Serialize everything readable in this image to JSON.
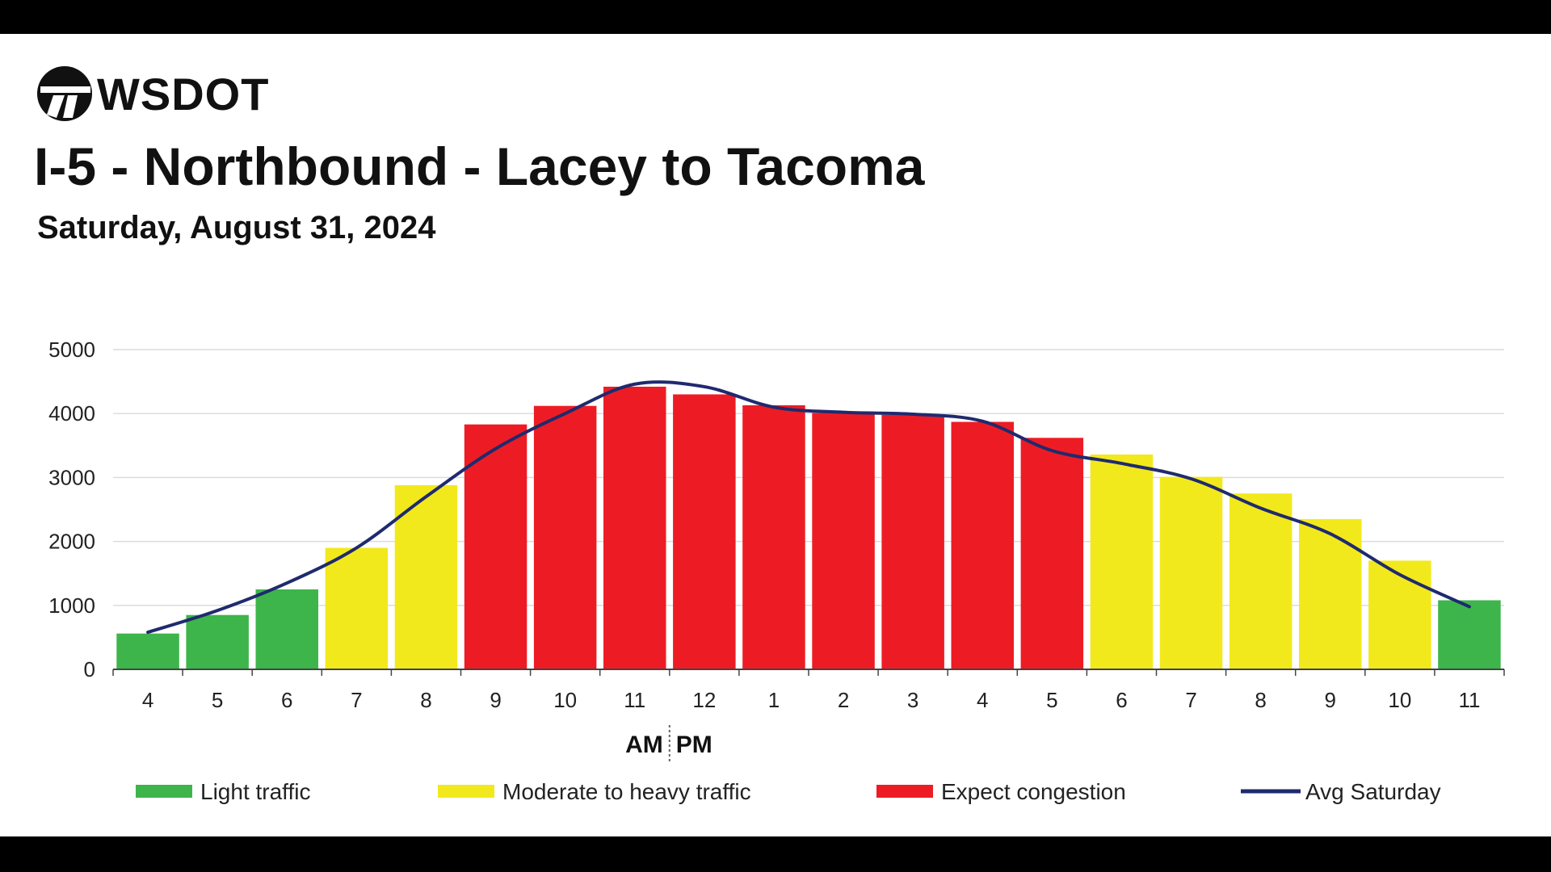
{
  "header": {
    "logo_text": "WSDOT",
    "title": "I-5 - Northbound - Lacey to Tacoma",
    "subtitle": "Saturday, August 31, 2024"
  },
  "colors": {
    "light": "#3db54a",
    "moderate": "#f2e91c",
    "congestion": "#ed1c24",
    "avg_line": "#1f2a6e"
  },
  "chart_data": {
    "type": "bar",
    "categories": [
      "4",
      "5",
      "6",
      "7",
      "8",
      "9",
      "10",
      "11",
      "12",
      "1",
      "2",
      "3",
      "4",
      "5",
      "6",
      "7",
      "8",
      "9",
      "10",
      "11"
    ],
    "values": [
      560,
      850,
      1250,
      1900,
      2880,
      3830,
      4120,
      4420,
      4300,
      4130,
      4010,
      3980,
      3870,
      3620,
      3360,
      3010,
      2750,
      2350,
      1700,
      1080
    ],
    "levels": [
      "light",
      "light",
      "light",
      "moderate",
      "moderate",
      "congestion",
      "congestion",
      "congestion",
      "congestion",
      "congestion",
      "congestion",
      "congestion",
      "congestion",
      "congestion",
      "moderate",
      "moderate",
      "moderate",
      "moderate",
      "moderate",
      "light"
    ],
    "series": [
      {
        "name": "Avg Saturday",
        "type": "line",
        "values": [
          580,
          920,
          1350,
          1900,
          2700,
          3450,
          4000,
          4460,
          4420,
          4100,
          4020,
          3990,
          3880,
          3420,
          3220,
          2980,
          2520,
          2120,
          1480,
          980
        ]
      }
    ],
    "ylim": [
      0,
      5000
    ],
    "yticks": [
      0,
      1000,
      2000,
      3000,
      4000,
      5000
    ],
    "grid": true,
    "am_label": "AM",
    "pm_label": "PM",
    "legend": [
      {
        "key": "light",
        "label": "Light traffic"
      },
      {
        "key": "moderate",
        "label": "Moderate to heavy traffic"
      },
      {
        "key": "congestion",
        "label": "Expect congestion"
      },
      {
        "key": "avg_line",
        "label": "Avg Saturday"
      }
    ],
    "legend_position": "bottom"
  }
}
